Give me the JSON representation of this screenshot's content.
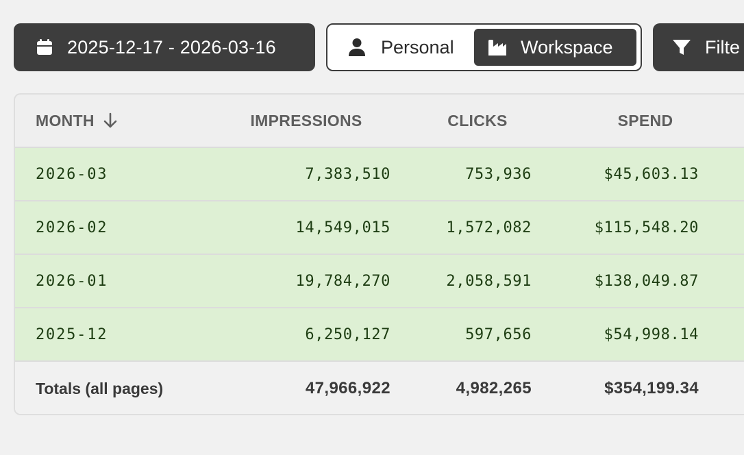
{
  "toolbar": {
    "date_range": {
      "label": "2025-12-17 - 2026-03-16",
      "icon": "calendar-icon"
    },
    "scope_toggle": {
      "selected": "Workspace",
      "options": [
        {
          "label": "Personal",
          "icon": "user-icon"
        },
        {
          "label": "Workspace",
          "icon": "factory-icon"
        }
      ]
    },
    "filter": {
      "label": "Filte",
      "icon": "filter-icon"
    }
  },
  "table": {
    "columns": {
      "month": "MONTH",
      "impressions": "IMPRESSIONS",
      "clicks": "CLICKS",
      "spend": "SPEND"
    },
    "sort": {
      "column": "month",
      "direction": "descending",
      "icon": "arrow-down-icon"
    },
    "rows": [
      {
        "month": "2026-03",
        "impressions": "7,383,510",
        "clicks": "753,936",
        "spend": "$45,603.13"
      },
      {
        "month": "2026-02",
        "impressions": "14,549,015",
        "clicks": "1,572,082",
        "spend": "$115,548.20"
      },
      {
        "month": "2026-01",
        "impressions": "19,784,270",
        "clicks": "2,058,591",
        "spend": "$138,049.87"
      },
      {
        "month": "2025-12",
        "impressions": "6,250,127",
        "clicks": "597,656",
        "spend": "$54,998.14"
      }
    ],
    "totals": {
      "label": "Totals (all pages)",
      "impressions": "47,966,922",
      "clicks": "4,982,265",
      "spend": "$354,199.34"
    }
  },
  "colors": {
    "button_dark": "#3d3d3d",
    "row_highlight": "#def0d4",
    "background": "#f1f1f1"
  }
}
